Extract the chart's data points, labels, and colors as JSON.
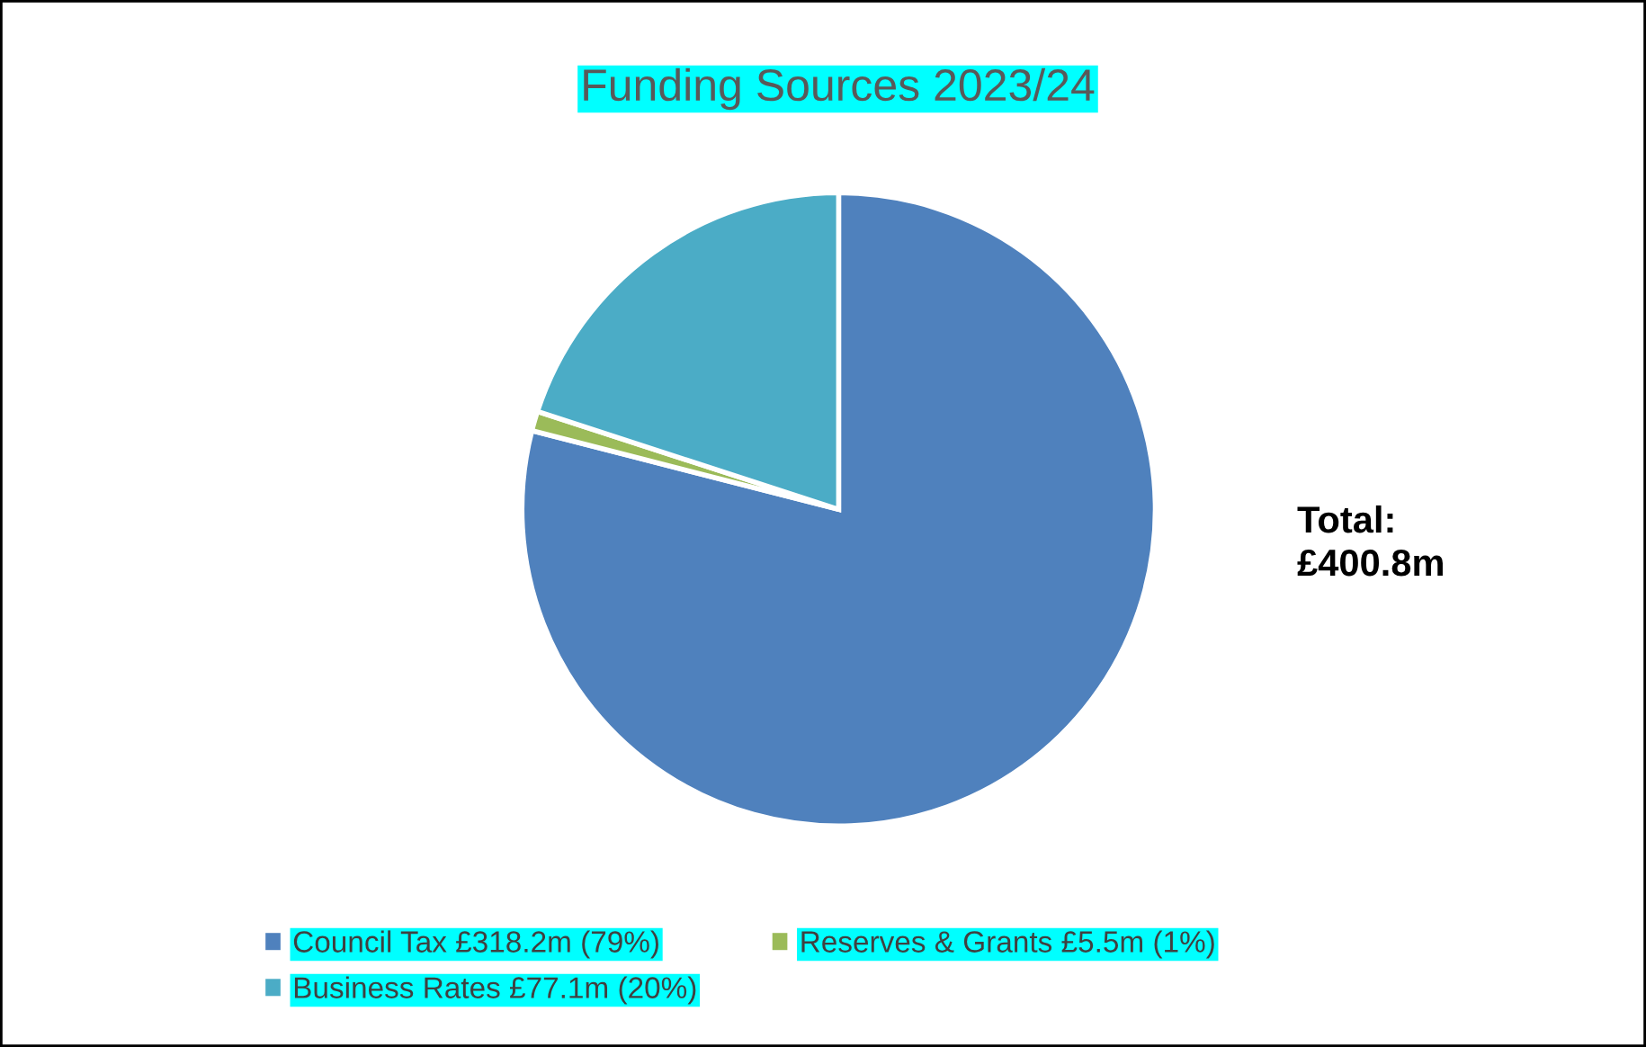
{
  "chart_data": {
    "type": "pie",
    "title": "Funding Sources 2023/24",
    "categories": [
      "Council Tax £318.2m (79%)",
      "Reserves & Grants £5.5m (1%)",
      "Business Rates £77.1m (20%)"
    ],
    "values": [
      79,
      1,
      20
    ],
    "colors": [
      "#4f81bd",
      "#9bbb59",
      "#4bacc6"
    ],
    "legend": "bottom",
    "annotations": [
      "Total:\n£400.8m"
    ]
  }
}
